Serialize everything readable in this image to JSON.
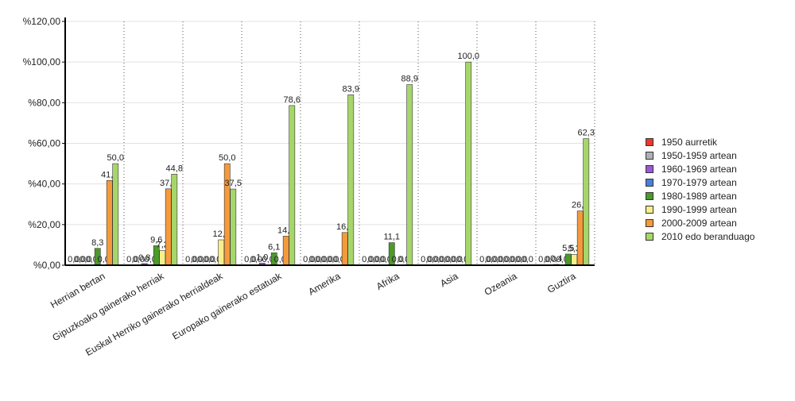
{
  "chart_data": {
    "type": "bar",
    "categories": [
      "Herrian bertan",
      "Gipuzkoako gainerako herriak",
      "Euskal Herriko gainerako herrialdeak",
      "Europako gainerako estatuak",
      "Amerika",
      "Afrika",
      "Asia",
      "Ozeania",
      "Guztira"
    ],
    "ylim": [
      0,
      120
    ],
    "yticks": [
      "%0,00",
      "%20,00",
      "%40,00",
      "%60,00",
      "%80,00",
      "%100,00",
      "%120,00"
    ],
    "legend_position": "right",
    "series": [
      {
        "name": "1950 aurretik",
        "color": "#e8392c",
        "values": [
          0,
          0,
          0,
          0,
          0,
          0,
          0,
          0,
          0
        ],
        "labels": [
          "0,0",
          "0,0",
          "0,0",
          "0,0",
          "0,0",
          "0,0",
          "0,0",
          "0,0",
          "0,0"
        ]
      },
      {
        "name": "1950-1959 artean",
        "color": "#b0b0b0",
        "values": [
          0,
          0,
          0,
          0,
          0,
          0,
          0,
          0,
          0
        ],
        "labels": [
          "0,0",
          "0,0",
          "0,0",
          "0,0",
          "0,0",
          "0,0",
          "0,0",
          "0,0",
          "0,0"
        ]
      },
      {
        "name": "1960-1969 artean",
        "color": "#9b59d6",
        "values": [
          0,
          0.8,
          0,
          1,
          0,
          0,
          0,
          0,
          0.4
        ],
        "labels": [
          "0,0",
          "0,8",
          "0,0",
          "1,0",
          "0,0",
          "0,0",
          "0,0",
          "0,0",
          "0,4"
        ]
      },
      {
        "name": "1970-1979 artean",
        "color": "#4a7fd8",
        "values": [
          0,
          0,
          0,
          0,
          0,
          0,
          0,
          0,
          0
        ],
        "labels": [
          "0,0",
          "0,0",
          "0,0",
          "0,0",
          "0,0",
          "0,0",
          "0,0",
          "0,0",
          "0,0"
        ]
      },
      {
        "name": "1980-1989 artean",
        "color": "#4b9a2a",
        "values": [
          8.3,
          9.6,
          0,
          6.1,
          0,
          11.1,
          0,
          0,
          5.5
        ],
        "labels": [
          "8,3",
          "9,6",
          "0,0",
          "6,1",
          "0,0",
          "11,1",
          "0,0",
          "0,0",
          "5,5"
        ]
      },
      {
        "name": "1990-1999 artean",
        "color": "#f7ee8c",
        "values": [
          0,
          7.2,
          12.5,
          0,
          0,
          0,
          0,
          0,
          5.3
        ],
        "labels": [
          "0,0",
          "7,2",
          "12,5",
          "0,0",
          "0,0",
          "0,0",
          "0,0",
          "0,0",
          "5,3"
        ]
      },
      {
        "name": "2000-2009 artean",
        "color": "#f59a3c",
        "values": [
          41.7,
          37.6,
          50.0,
          14.3,
          16.1,
          0,
          0,
          0,
          26.7
        ],
        "labels": [
          "41,7",
          "37,6",
          "50,0",
          "14,3",
          "16,1",
          "0,0",
          "0,0",
          "0,0",
          "26,7"
        ]
      },
      {
        "name": "2010 edo beranduago",
        "color": "#a6d66a",
        "values": [
          50.0,
          44.8,
          37.5,
          78.6,
          83.9,
          88.9,
          100.0,
          0,
          62.3
        ],
        "labels": [
          "50,0",
          "44,8",
          "37,5",
          "78,6",
          "83,9",
          "88,9",
          "100,0",
          "0,0",
          "62,3"
        ]
      }
    ]
  }
}
